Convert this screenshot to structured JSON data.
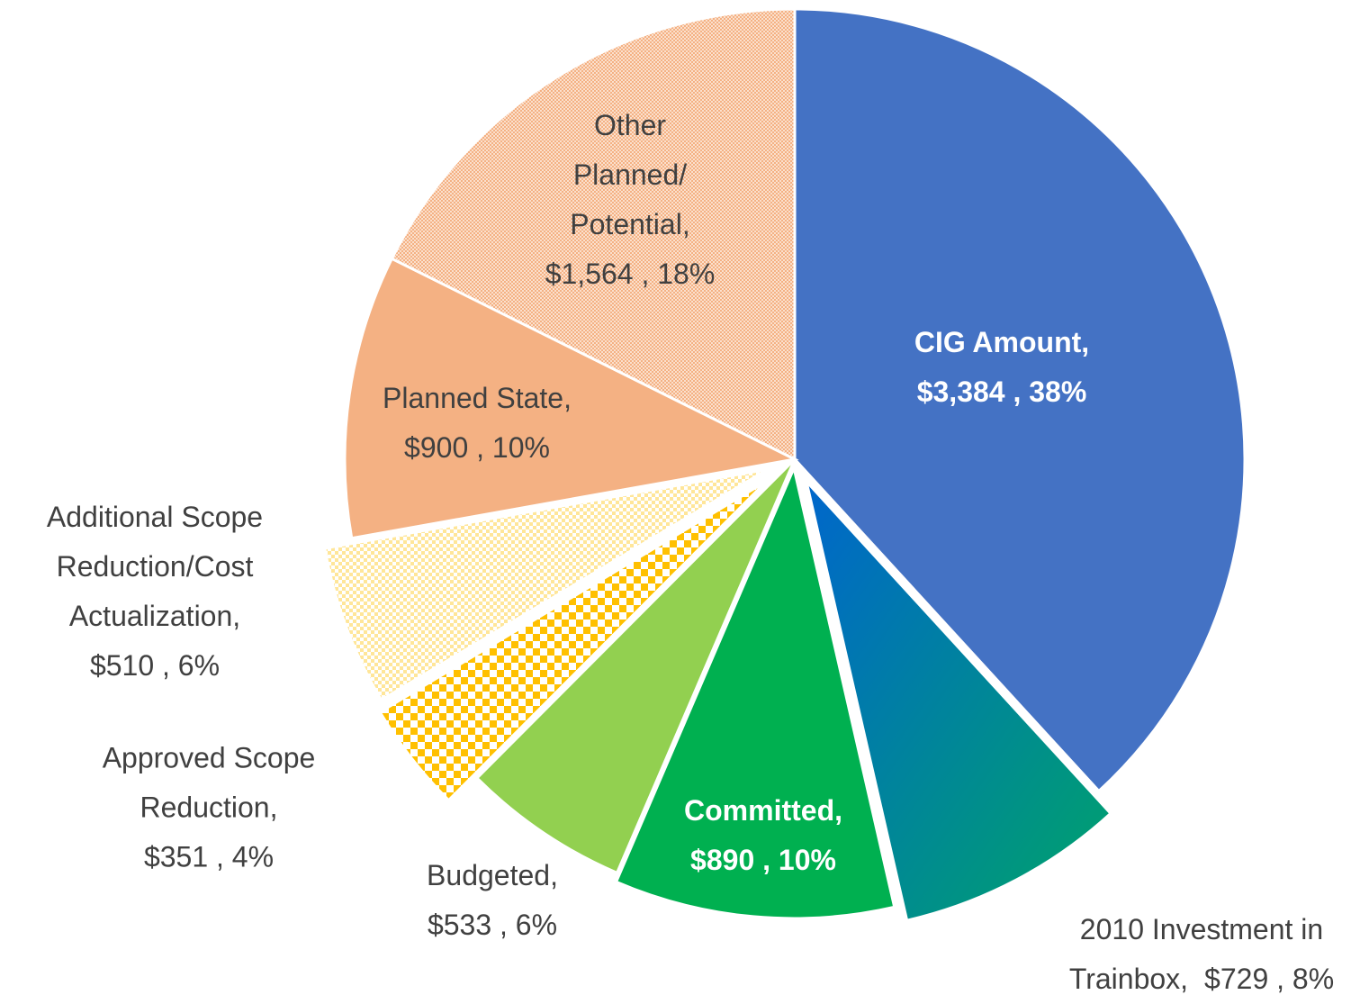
{
  "chart_data": {
    "type": "pie",
    "categories": [
      "CIG Amount,",
      "2010 Investment in Trainbox,",
      "Committed,",
      "Budgeted,",
      "Approved Scope Reduction,",
      "Additional Scope Reduction/Cost Actualization,",
      "Planned State,",
      "Other Planned/ Potential,"
    ],
    "values": [
      3384,
      729,
      890,
      533,
      351,
      510,
      900,
      1564
    ],
    "value_labels": [
      "$3,384 , 38%",
      "$729 , 8%",
      "$890 , 10%",
      "$533 , 6%",
      "$351 , 4%",
      "$510 , 6%",
      "$900 , 10%",
      "$1,564 , 18%"
    ],
    "colors": [
      "#4472c4",
      "#0a7fb0",
      "#00b050",
      "#92d050",
      "#ffc000",
      "#ffe699",
      "#f4b183",
      "#f4b183"
    ]
  }
}
